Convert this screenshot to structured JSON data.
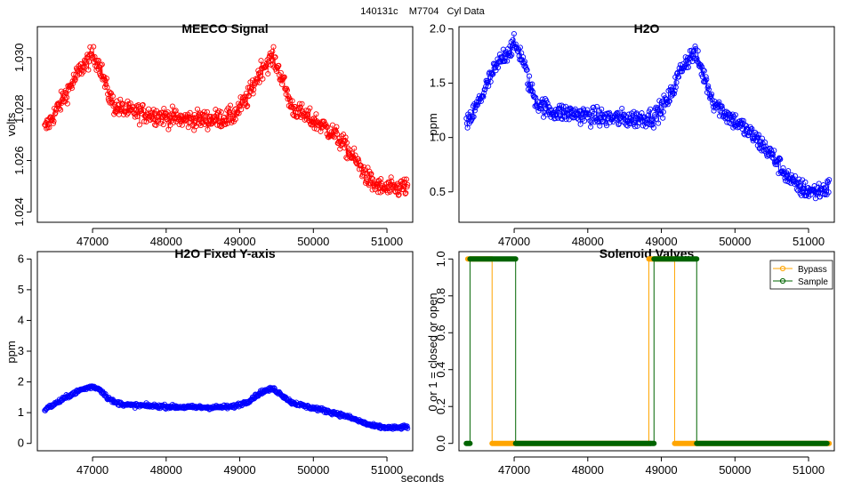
{
  "figure": {
    "title": "140131c    M7704   Cyl Data",
    "xlabel": "seconds"
  },
  "chart_data": [
    {
      "type": "scatter",
      "title": "MEECO Signal",
      "xlabel": "",
      "ylabel": "volts",
      "xlim": [
        46250,
        51350
      ],
      "ylim": [
        1.0236,
        1.0312
      ],
      "xticks": [
        47000,
        48000,
        49000,
        50000,
        51000
      ],
      "yticks": [
        1.024,
        1.026,
        1.028,
        1.03
      ],
      "ytick_labels": [
        "1.024",
        "1.026",
        "1.028",
        "1.030"
      ],
      "color": "#ff0000",
      "marker": "open-circle",
      "connected": true,
      "profile": {
        "x": [
          46350,
          46500,
          46700,
          46850,
          47000,
          47100,
          47200,
          47300,
          47500,
          47800,
          48200,
          48600,
          48900,
          49100,
          49300,
          49450,
          49550,
          49700,
          49900,
          50100,
          50300,
          50500,
          50650,
          50800,
          50950,
          51100,
          51280
        ],
        "y": [
          1.0272,
          1.0279,
          1.0289,
          1.0296,
          1.0301,
          1.0297,
          1.0287,
          1.0281,
          1.0279,
          1.0278,
          1.0276,
          1.0276,
          1.0277,
          1.0284,
          1.0296,
          1.03,
          1.0294,
          1.0281,
          1.0277,
          1.0274,
          1.027,
          1.0263,
          1.0257,
          1.0251,
          1.0249,
          1.0249,
          1.025
        ]
      },
      "noise": 0.00048
    },
    {
      "type": "scatter",
      "title": "H2O",
      "xlabel": "",
      "ylabel": "ppm",
      "xlim": [
        46250,
        51350
      ],
      "ylim": [
        0.22,
        2.02
      ],
      "xticks": [
        47000,
        48000,
        49000,
        50000,
        51000
      ],
      "yticks": [
        0.5,
        1.0,
        1.5,
        2.0
      ],
      "ytick_labels": [
        "0.5",
        "1.0",
        "1.5",
        "2.0"
      ],
      "color": "#0000ff",
      "marker": "open-circle",
      "connected": true,
      "profile": {
        "x": [
          46350,
          46500,
          46700,
          46850,
          47000,
          47100,
          47200,
          47300,
          47500,
          47800,
          48200,
          48600,
          48900,
          49100,
          49300,
          49450,
          49550,
          49700,
          49900,
          50100,
          50300,
          50500,
          50650,
          50800,
          50950,
          51100,
          51280
        ],
        "y": [
          1.1,
          1.3,
          1.58,
          1.75,
          1.85,
          1.76,
          1.5,
          1.33,
          1.24,
          1.22,
          1.18,
          1.17,
          1.19,
          1.35,
          1.68,
          1.78,
          1.62,
          1.34,
          1.2,
          1.1,
          0.98,
          0.84,
          0.7,
          0.57,
          0.52,
          0.5,
          0.54
        ]
      },
      "noise": 0.11
    },
    {
      "type": "scatter",
      "title": "H2O Fixed Y-axis",
      "xlabel": "",
      "ylabel": "ppm",
      "xlim": [
        46250,
        51350
      ],
      "ylim": [
        -0.24,
        6.24
      ],
      "xticks": [
        47000,
        48000,
        49000,
        50000,
        51000
      ],
      "yticks": [
        0,
        1,
        2,
        3,
        4,
        5,
        6
      ],
      "ytick_labels": [
        "0",
        "1",
        "2",
        "3",
        "4",
        "5",
        "6"
      ],
      "color": "#0000ff",
      "marker": "open-circle",
      "connected": true,
      "profile": {
        "x": [
          46350,
          46500,
          46700,
          46850,
          47000,
          47100,
          47200,
          47300,
          47500,
          47800,
          48200,
          48600,
          48900,
          49100,
          49300,
          49450,
          49550,
          49700,
          49900,
          50100,
          50300,
          50500,
          50650,
          50800,
          50950,
          51100,
          51280
        ],
        "y": [
          1.1,
          1.3,
          1.58,
          1.75,
          1.85,
          1.76,
          1.5,
          1.33,
          1.24,
          1.22,
          1.18,
          1.17,
          1.19,
          1.35,
          1.68,
          1.78,
          1.62,
          1.34,
          1.2,
          1.1,
          0.98,
          0.84,
          0.7,
          0.57,
          0.52,
          0.5,
          0.54
        ]
      },
      "noise": 0.08
    },
    {
      "type": "line",
      "title": "Solenoid Valves",
      "xlabel": "",
      "ylabel": "0 or 1 = closed or open",
      "xlim": [
        46250,
        51350
      ],
      "ylim": [
        -0.04,
        1.04
      ],
      "xticks": [
        47000,
        48000,
        49000,
        50000,
        51000
      ],
      "yticks": [
        0.0,
        0.2,
        0.4,
        0.6,
        0.8,
        1.0
      ],
      "ytick_labels": [
        "0.0",
        "0.2",
        "0.4",
        "0.6",
        "0.8",
        "1.0"
      ],
      "legend": {
        "placement": "top-right",
        "entries": [
          "Bypass",
          "Sample"
        ]
      },
      "series": [
        {
          "name": "Bypass",
          "color": "#ffa500",
          "segments": [
            {
              "x": [
                46370,
                46700
              ],
              "value": 1
            },
            {
              "x": [
                46700,
                48830
              ],
              "value": 0
            },
            {
              "x": [
                48830,
                49180
              ],
              "value": 1
            },
            {
              "x": [
                49180,
                51280
              ],
              "value": 0
            }
          ]
        },
        {
          "name": "Sample",
          "color": "#006400",
          "segments": [
            {
              "x": [
                46350,
                46400
              ],
              "value": 0
            },
            {
              "x": [
                46400,
                47020
              ],
              "value": 1
            },
            {
              "x": [
                47020,
                48850
              ],
              "value": 0
            },
            {
              "x": [
                48850,
                48900
              ],
              "value": 0
            },
            {
              "x": [
                48900,
                49480
              ],
              "value": 1
            },
            {
              "x": [
                49480,
                51250
              ],
              "value": 0
            }
          ]
        }
      ]
    }
  ]
}
